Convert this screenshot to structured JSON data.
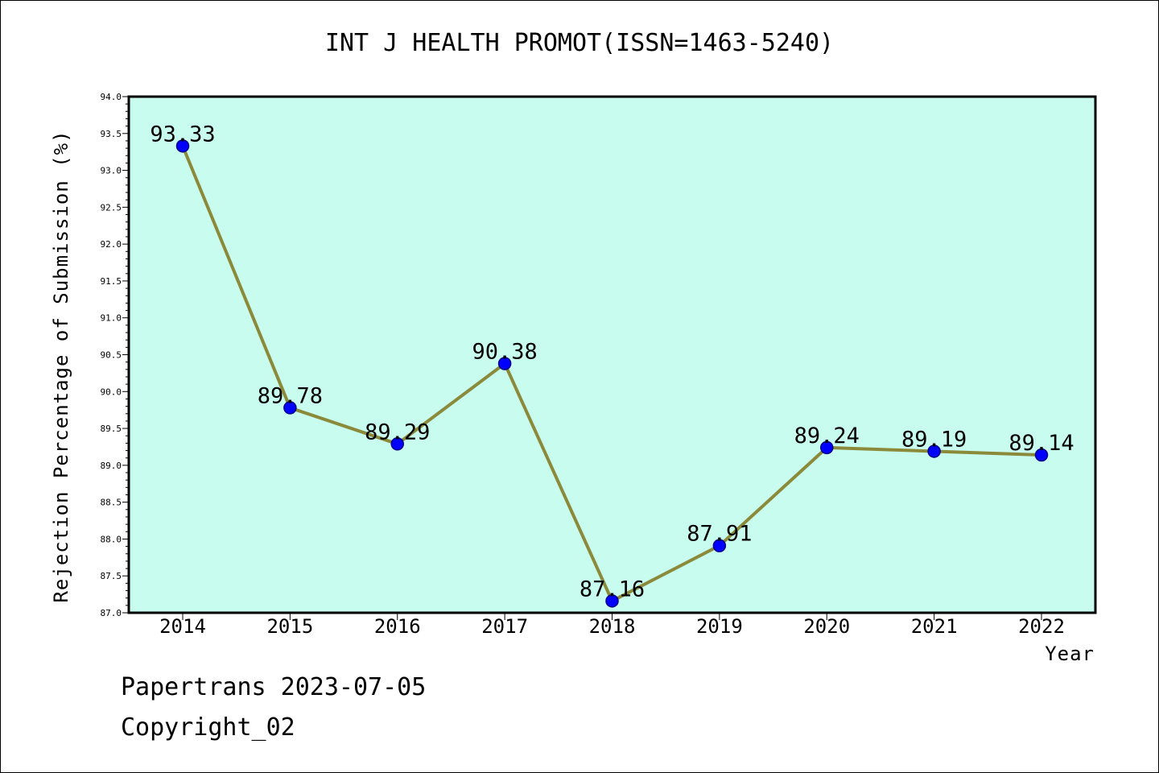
{
  "chart_data": {
    "type": "line",
    "title": "INT J HEALTH PROMOT(ISSN=1463-5240)",
    "xlabel": "Year",
    "ylabel": "Rejection Percentage of Submission (%)",
    "categories": [
      "2014",
      "2015",
      "2016",
      "2017",
      "2018",
      "2019",
      "2020",
      "2021",
      "2022"
    ],
    "series": [
      {
        "values": [
          93.33,
          89.78,
          89.29,
          90.38,
          87.16,
          87.91,
          89.24,
          89.19,
          89.14
        ]
      }
    ],
    "data_labels": [
      "93.33",
      "89.78",
      "89.29",
      "90.38",
      "87.16",
      "87.91",
      "89.24",
      "89.19",
      "89.14"
    ],
    "ylim": [
      87.0,
      94.0
    ],
    "yticks": [
      "87.0",
      "87.5",
      "88.0",
      "88.5",
      "89.0",
      "89.5",
      "90.0",
      "90.5",
      "91.0",
      "91.5",
      "92.0",
      "92.5",
      "93.0",
      "93.5",
      "94.0"
    ],
    "grid": false,
    "colors": {
      "plot_background": "#c8fcee",
      "line": "#8b8a3a",
      "marker": "#0000ff",
      "marker_edge": "#00008b"
    }
  },
  "footer": {
    "line1": "Papertrans 2023-07-05",
    "line2": "Copyright_02"
  }
}
